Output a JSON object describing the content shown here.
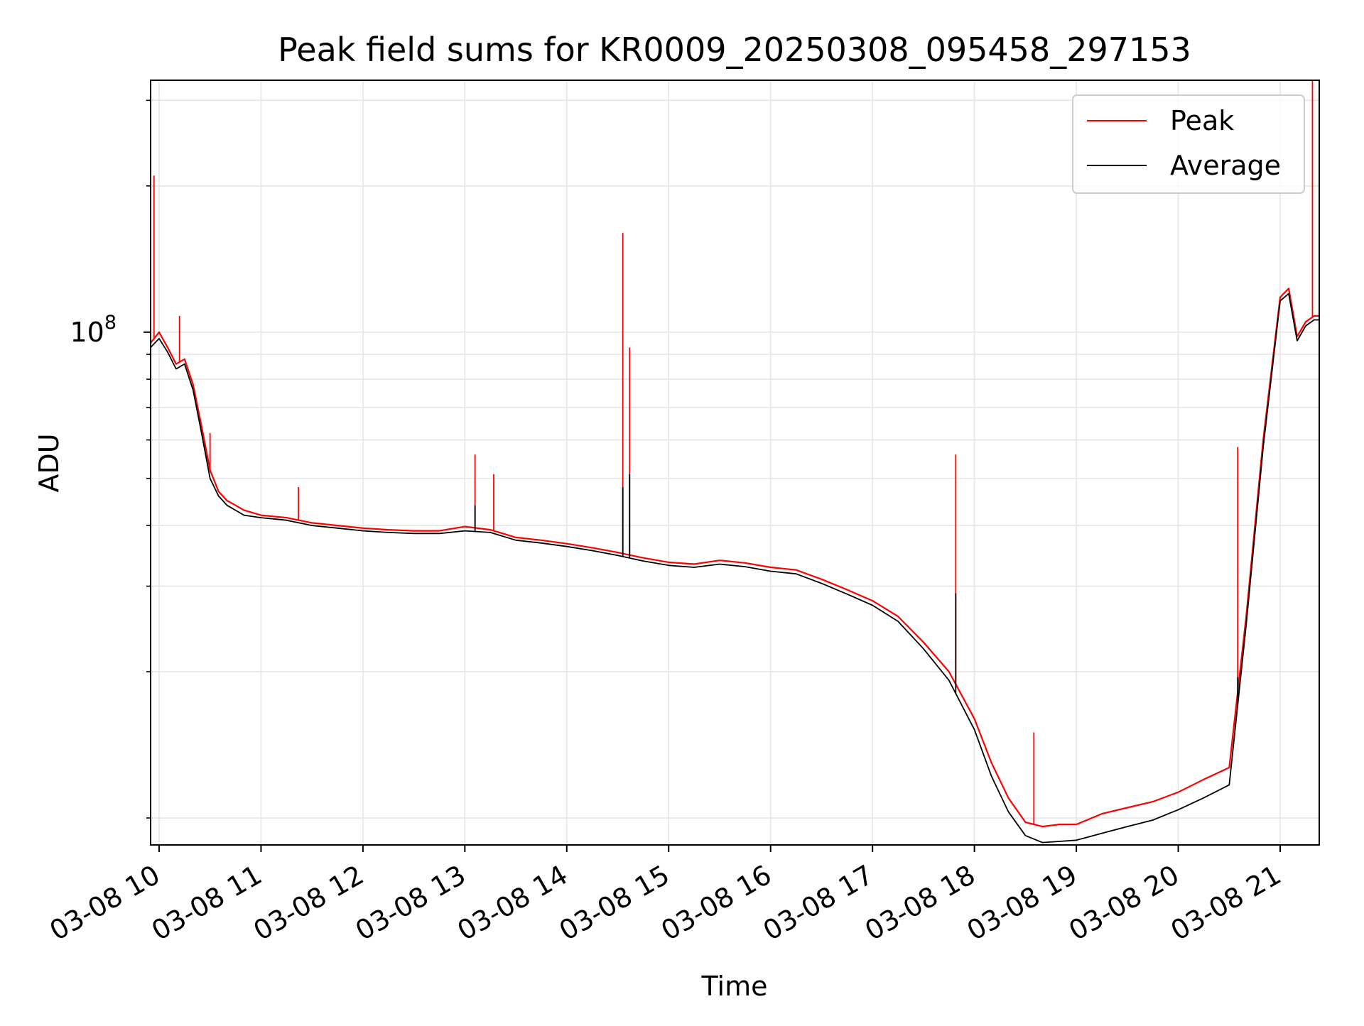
{
  "chart_data": {
    "type": "line",
    "title": "Peak field sums for KR0009_20250308_095458_297153",
    "xlabel": "Time",
    "ylabel": "ADU",
    "yscale": "log",
    "ylim": [
      8800000,
      330000000
    ],
    "xlim": [
      "2025-03-08 09:55",
      "2025-03-08 21:23"
    ],
    "x_tick_labels": [
      "03-08 10",
      "03-08 11",
      "03-08 12",
      "03-08 13",
      "03-08 14",
      "03-08 15",
      "03-08 16",
      "03-08 17",
      "03-08 18",
      "03-08 19",
      "03-08 20",
      "03-08 21"
    ],
    "y_tick_labels": [
      {
        "base": "10",
        "exp": "8",
        "value": 100000000
      }
    ],
    "grid": true,
    "legend": {
      "position": "top-right"
    },
    "colors": {
      "peak": "#ff0000",
      "average": "#000000",
      "grid": "#e6e6e6"
    },
    "x": [
      "09:55",
      "10:00",
      "10:05",
      "10:10",
      "10:15",
      "10:20",
      "10:25",
      "10:30",
      "10:35",
      "10:40",
      "10:45",
      "10:50",
      "11:00",
      "11:15",
      "11:30",
      "11:45",
      "12:00",
      "12:15",
      "12:30",
      "12:45",
      "13:00",
      "13:15",
      "13:30",
      "13:45",
      "14:00",
      "14:15",
      "14:30",
      "14:45",
      "15:00",
      "15:15",
      "15:30",
      "15:45",
      "16:00",
      "16:15",
      "16:30",
      "16:45",
      "17:00",
      "17:15",
      "17:30",
      "17:45",
      "18:00",
      "18:10",
      "18:20",
      "18:30",
      "18:40",
      "18:50",
      "19:00",
      "19:15",
      "19:30",
      "19:45",
      "20:00",
      "20:15",
      "20:30",
      "20:40",
      "20:50",
      "21:00",
      "21:05",
      "21:10",
      "21:15",
      "21:20",
      "21:23"
    ],
    "series": [
      {
        "name": "Peak",
        "values": [
          95000000,
          100000000,
          93000000,
          86000000,
          88000000,
          78000000,
          64000000,
          52000000,
          47000000,
          45000000,
          44000000,
          43000000,
          42000000,
          41500000,
          40500000,
          40000000,
          39500000,
          39200000,
          39000000,
          39000000,
          39800000,
          39200000,
          37800000,
          37300000,
          36700000,
          36000000,
          35200000,
          34300000,
          33600000,
          33300000,
          33900000,
          33500000,
          32800000,
          32400000,
          31000000,
          29500000,
          28000000,
          26000000,
          23000000,
          20000000,
          16000000,
          13000000,
          11000000,
          9800000,
          9600000,
          9700000,
          9700000,
          10200000,
          10500000,
          10800000,
          11300000,
          12000000,
          12700000,
          26000000,
          60000000,
          118000000,
          123000000,
          98000000,
          105000000,
          108000000,
          108000000
        ]
      },
      {
        "name": "Average",
        "values": [
          93000000,
          97000000,
          91000000,
          84000000,
          86000000,
          76000000,
          62000000,
          50000000,
          46000000,
          44000000,
          43000000,
          42000000,
          41500000,
          41000000,
          40000000,
          39500000,
          39000000,
          38700000,
          38500000,
          38500000,
          39000000,
          38700000,
          37300000,
          36800000,
          36200000,
          35500000,
          34700000,
          33800000,
          33100000,
          32800000,
          33300000,
          32900000,
          32200000,
          31800000,
          30400000,
          28900000,
          27400000,
          25400000,
          22300000,
          19200000,
          15200000,
          12200000,
          10300000,
          9200000,
          8900000,
          8950000,
          9000000,
          9300000,
          9600000,
          9900000,
          10400000,
          11000000,
          11700000,
          25000000,
          58000000,
          116000000,
          120000000,
          96000000,
          103000000,
          106000000,
          106000000
        ]
      }
    ],
    "spikes": [
      {
        "series": "Peak",
        "x": "09:57",
        "value": 210000000
      },
      {
        "series": "Peak",
        "x": "10:12",
        "value": 108000000
      },
      {
        "series": "Peak",
        "x": "10:30",
        "value": 62000000
      },
      {
        "series": "Peak",
        "x": "11:22",
        "value": 48000000
      },
      {
        "series": "Peak",
        "x": "13:06",
        "value": 56000000
      },
      {
        "series": "Peak",
        "x": "13:17",
        "value": 51000000
      },
      {
        "series": "Peak",
        "x": "14:33",
        "value": 160000000
      },
      {
        "series": "Peak",
        "x": "14:37",
        "value": 93000000
      },
      {
        "series": "Peak",
        "x": "17:49",
        "value": 56000000
      },
      {
        "series": "Peak",
        "x": "18:35",
        "value": 15000000
      },
      {
        "series": "Peak",
        "x": "20:35",
        "value": 58000000
      },
      {
        "series": "Peak",
        "x": "21:19",
        "value": 330000000
      },
      {
        "series": "Average",
        "x": "13:06",
        "value": 44000000
      },
      {
        "series": "Average",
        "x": "14:33",
        "value": 48000000
      },
      {
        "series": "Average",
        "x": "14:37",
        "value": 51000000
      },
      {
        "series": "Average",
        "x": "17:49",
        "value": 29000000
      },
      {
        "series": "Average",
        "x": "20:35",
        "value": 19500000
      }
    ]
  }
}
